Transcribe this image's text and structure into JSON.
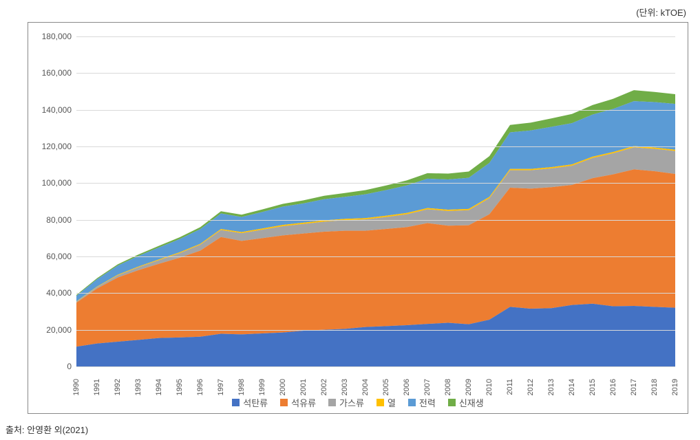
{
  "unit_label": "(단위: kTOE)",
  "source_label": "출처: 안영환 외(2021)",
  "chart": {
    "type": "area-stacked",
    "background_color": "#ffffff",
    "grid_color": "#d9d9d9",
    "frame_border_color": "#888888",
    "text_color": "#555555",
    "label_fontsize": 12,
    "legend_fontsize": 13,
    "ylim": [
      0,
      180000
    ],
    "ytick_step": 20000,
    "yticks": [
      0,
      20000,
      40000,
      60000,
      80000,
      100000,
      120000,
      140000,
      160000,
      180000
    ],
    "ytick_labels": [
      "0",
      "20,000",
      "40,000",
      "60,000",
      "80,000",
      "100,000",
      "120,000",
      "140,000",
      "160,000",
      "180,000"
    ],
    "categories": [
      "1990",
      "1991",
      "1992",
      "1993",
      "1994",
      "1995",
      "1996",
      "1997",
      "1998",
      "1999",
      "2000",
      "2001",
      "2002",
      "2003",
      "2004",
      "2005",
      "2006",
      "2007",
      "2008",
      "2009",
      "2010",
      "2011",
      "2012",
      "2013",
      "2014",
      "2015",
      "2016",
      "2017",
      "2018",
      "2019"
    ],
    "series": [
      {
        "name": "석탄류",
        "color": "#4472c4",
        "values": [
          10800,
          12500,
          13500,
          14500,
          15500,
          15800,
          16200,
          17800,
          17500,
          18000,
          18500,
          19500,
          20000,
          20500,
          21500,
          22000,
          22500,
          23200,
          23800,
          23000,
          25500,
          32500,
          31500,
          31800,
          33500,
          34200,
          32800,
          33000,
          32500,
          32000
        ]
      },
      {
        "name": "석유류",
        "color": "#ed7d31",
        "values": [
          24000,
          30000,
          35000,
          38000,
          40500,
          43500,
          47000,
          52800,
          51000,
          52000,
          53000,
          53000,
          53500,
          53500,
          52500,
          53000,
          53500,
          55000,
          53000,
          54000,
          57500,
          65000,
          65500,
          66000,
          65500,
          68500,
          72000,
          74500,
          74000,
          73000
        ]
      },
      {
        "name": "가스류",
        "color": "#a5a5a5",
        "values": [
          500,
          800,
          1200,
          1600,
          2000,
          2500,
          3200,
          3800,
          4200,
          4600,
          5000,
          5200,
          5500,
          5800,
          6200,
          6500,
          7000,
          7500,
          8000,
          8200,
          8800,
          9500,
          10000,
          10200,
          10500,
          11000,
          11500,
          12000,
          12200,
          12500
        ]
      },
      {
        "name": "열",
        "color": "#ffc000",
        "values": [
          200,
          250,
          300,
          350,
          400,
          450,
          500,
          550,
          600,
          650,
          700,
          700,
          700,
          700,
          700,
          700,
          700,
          700,
          700,
          700,
          700,
          700,
          700,
          700,
          700,
          700,
          700,
          700,
          700,
          700
        ]
      },
      {
        "name": "전력",
        "color": "#5b9bd5",
        "values": [
          3000,
          4000,
          5000,
          5800,
          6500,
          7200,
          8000,
          8500,
          8200,
          9000,
          10000,
          10500,
          11500,
          12000,
          13000,
          14000,
          15000,
          16000,
          16500,
          17000,
          18500,
          20000,
          21000,
          22000,
          22500,
          23000,
          23500,
          24500,
          24800,
          25000
        ]
      },
      {
        "name": "신재생",
        "color": "#70ad47",
        "values": [
          500,
          600,
          700,
          800,
          900,
          1000,
          1100,
          1200,
          1300,
          1400,
          1500,
          1700,
          1900,
          2100,
          2300,
          2500,
          2800,
          3000,
          3200,
          3400,
          3700,
          4000,
          4300,
          4600,
          5000,
          5200,
          5500,
          6000,
          5500,
          5300
        ]
      }
    ]
  },
  "legend_items": [
    {
      "label": "석탄류",
      "color": "#4472c4"
    },
    {
      "label": "석유류",
      "color": "#ed7d31"
    },
    {
      "label": "가스류",
      "color": "#a5a5a5"
    },
    {
      "label": "열",
      "color": "#ffc000"
    },
    {
      "label": "전력",
      "color": "#5b9bd5"
    },
    {
      "label": "신재생",
      "color": "#70ad47"
    }
  ]
}
